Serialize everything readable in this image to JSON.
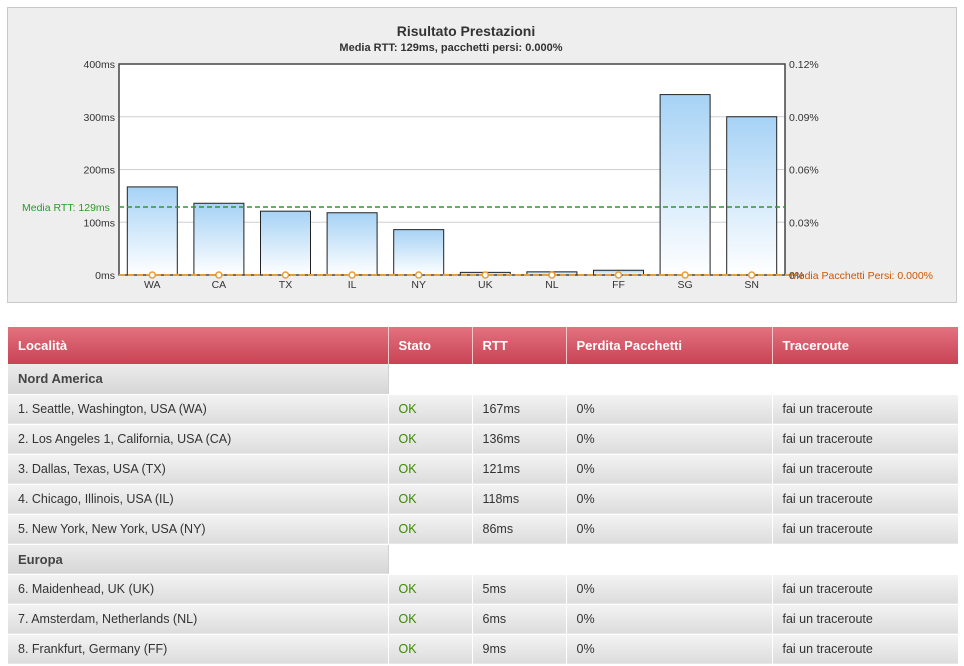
{
  "chart": {
    "title": "Risultato Prestazioni",
    "subtitle": "Media RTT: 129ms, pacchetti persi: 0.000%",
    "avg_label": "Media RTT: 129ms",
    "loss_label": "Media Pacchetti Persi: 0.000%",
    "y_left_ticks": [
      "0ms",
      "100ms",
      "200ms",
      "300ms",
      "400ms"
    ],
    "y_right_ticks": [
      "0%",
      "0.03%",
      "0.06%",
      "0.09%",
      "0.12%"
    ],
    "colors": {
      "avg_line": "#2a9a2a",
      "loss_line": "#e0a040",
      "loss_text": "#cc5500",
      "bar_top": "#a6d2f5",
      "bar_bottom": "#ffffff"
    }
  },
  "chart_data": {
    "type": "bar",
    "categories": [
      "WA",
      "CA",
      "TX",
      "IL",
      "NY",
      "UK",
      "NL",
      "FF",
      "SG",
      "SN"
    ],
    "series": [
      {
        "name": "RTT",
        "values": [
          167,
          136,
          121,
          118,
          86,
          5,
          6,
          9,
          342,
          300
        ]
      },
      {
        "name": "Pacchetti Persi",
        "values": [
          0,
          0,
          0,
          0,
          0,
          0,
          0,
          0,
          0,
          0
        ]
      }
    ],
    "average_rtt": 129,
    "average_loss": 0,
    "ylim": [
      0,
      400
    ],
    "y2lim": [
      0,
      0.12
    ],
    "grid": true
  },
  "table": {
    "headers": [
      "Località",
      "Stato",
      "RTT",
      "Perdita Pacchetti",
      "Traceroute"
    ],
    "groups": [
      {
        "region": "Nord America",
        "rows": [
          {
            "location": "1. Seattle, Washington, USA (WA)",
            "status": "OK",
            "rtt": "167ms",
            "loss": "0%",
            "traceroute": "fai un traceroute"
          },
          {
            "location": "2. Los Angeles 1, California, USA (CA)",
            "status": "OK",
            "rtt": "136ms",
            "loss": "0%",
            "traceroute": "fai un traceroute"
          },
          {
            "location": "3. Dallas, Texas, USA (TX)",
            "status": "OK",
            "rtt": "121ms",
            "loss": "0%",
            "traceroute": "fai un traceroute"
          },
          {
            "location": "4. Chicago, Illinois, USA (IL)",
            "status": "OK",
            "rtt": "118ms",
            "loss": "0%",
            "traceroute": "fai un traceroute"
          },
          {
            "location": "5. New York, New York, USA (NY)",
            "status": "OK",
            "rtt": "86ms",
            "loss": "0%",
            "traceroute": "fai un traceroute"
          }
        ]
      },
      {
        "region": "Europa",
        "rows": [
          {
            "location": "6. Maidenhead, UK (UK)",
            "status": "OK",
            "rtt": "5ms",
            "loss": "0%",
            "traceroute": "fai un traceroute"
          },
          {
            "location": "7. Amsterdam, Netherlands (NL)",
            "status": "OK",
            "rtt": "6ms",
            "loss": "0%",
            "traceroute": "fai un traceroute"
          },
          {
            "location": "8. Frankfurt, Germany (FF)",
            "status": "OK",
            "rtt": "9ms",
            "loss": "0%",
            "traceroute": "fai un traceroute"
          }
        ]
      }
    ]
  }
}
